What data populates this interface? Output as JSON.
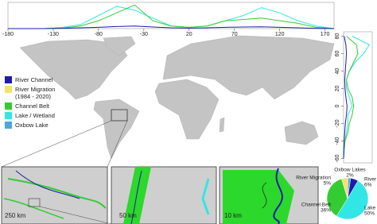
{
  "legend": [
    {
      "label": "River Channel",
      "color": "#1c1ca8"
    },
    {
      "label": "River Migration (1984 - 2020)",
      "color": "#f2e36a"
    },
    {
      "label": "Channel Belt",
      "color": "#33cc33"
    },
    {
      "label": "Lake / Wetland",
      "color": "#33e6e6"
    },
    {
      "label": "Oxbow Lake",
      "color": "#4aa6e0"
    }
  ],
  "top_profile": {
    "type": "line",
    "xlim": [
      -180,
      180
    ],
    "xticks": [
      -180,
      -130,
      -80,
      -30,
      20,
      70,
      120,
      170
    ],
    "ylim": [
      0,
      1
    ],
    "x": [
      -180,
      -160,
      -140,
      -120,
      -100,
      -80,
      -60,
      -40,
      -20,
      0,
      20,
      40,
      60,
      80,
      100,
      120,
      140,
      160,
      180
    ],
    "series": [
      {
        "color": "#33e6e6",
        "values": [
          0,
          0,
          0,
          0.05,
          0.15,
          0.5,
          0.85,
          0.7,
          0.4,
          0.1,
          0.05,
          0.1,
          0.3,
          0.5,
          0.8,
          0.6,
          0.3,
          0.1,
          0
        ]
      },
      {
        "color": "#33cc33",
        "values": [
          0,
          0,
          0,
          0.02,
          0.1,
          0.3,
          0.6,
          0.9,
          0.3,
          0.1,
          0.05,
          0.1,
          0.3,
          0.35,
          0.4,
          0.3,
          0.2,
          0.05,
          0
        ]
      },
      {
        "color": "#1c1ca8",
        "values": [
          0,
          0,
          0,
          0.01,
          0.03,
          0.05,
          0.08,
          0.1,
          0.06,
          0.03,
          0.02,
          0.03,
          0.05,
          0.06,
          0.07,
          0.05,
          0.03,
          0.01,
          0
        ]
      }
    ]
  },
  "right_profile": {
    "type": "line",
    "ylim": [
      -65,
      85
    ],
    "yticks": [
      80,
      60,
      40,
      20,
      0,
      -20,
      -40,
      -60
    ],
    "xlim": [
      0,
      1
    ],
    "y": [
      -60,
      -50,
      -40,
      -30,
      -20,
      -10,
      0,
      10,
      20,
      30,
      40,
      50,
      60,
      70,
      80
    ],
    "series": [
      {
        "color": "#33e6e6",
        "values": [
          0,
          0,
          0.05,
          0.1,
          0.15,
          0.15,
          0.3,
          0.2,
          0.1,
          0.1,
          0.2,
          0.4,
          0.7,
          0.9,
          0.3
        ]
      },
      {
        "color": "#33cc33",
        "values": [
          0,
          0.02,
          0.05,
          0.15,
          0.2,
          0.3,
          0.35,
          0.3,
          0.15,
          0.1,
          0.2,
          0.35,
          0.5,
          0.45,
          0.1
        ]
      },
      {
        "color": "#1c1ca8",
        "values": [
          0,
          0.01,
          0.02,
          0.04,
          0.06,
          0.1,
          0.12,
          0.08,
          0.05,
          0.04,
          0.06,
          0.08,
          0.1,
          0.08,
          0.02
        ]
      }
    ]
  },
  "insets": [
    {
      "scale": "250 km"
    },
    {
      "scale": "50 km"
    },
    {
      "scale": "10 km"
    }
  ],
  "pie": {
    "type": "pie",
    "categories": [
      "River",
      "Lake",
      "Channel Belt",
      "River Migration",
      "Oxbow Lakes"
    ],
    "values": [
      6,
      50,
      36,
      5,
      2
    ],
    "value_labels": [
      "6%",
      "50%",
      "36%",
      "5%",
      "2%"
    ],
    "colors": [
      "#1c1ca8",
      "#33e6e6",
      "#33cc33",
      "#f2e36a",
      "#4aa6e0"
    ]
  }
}
